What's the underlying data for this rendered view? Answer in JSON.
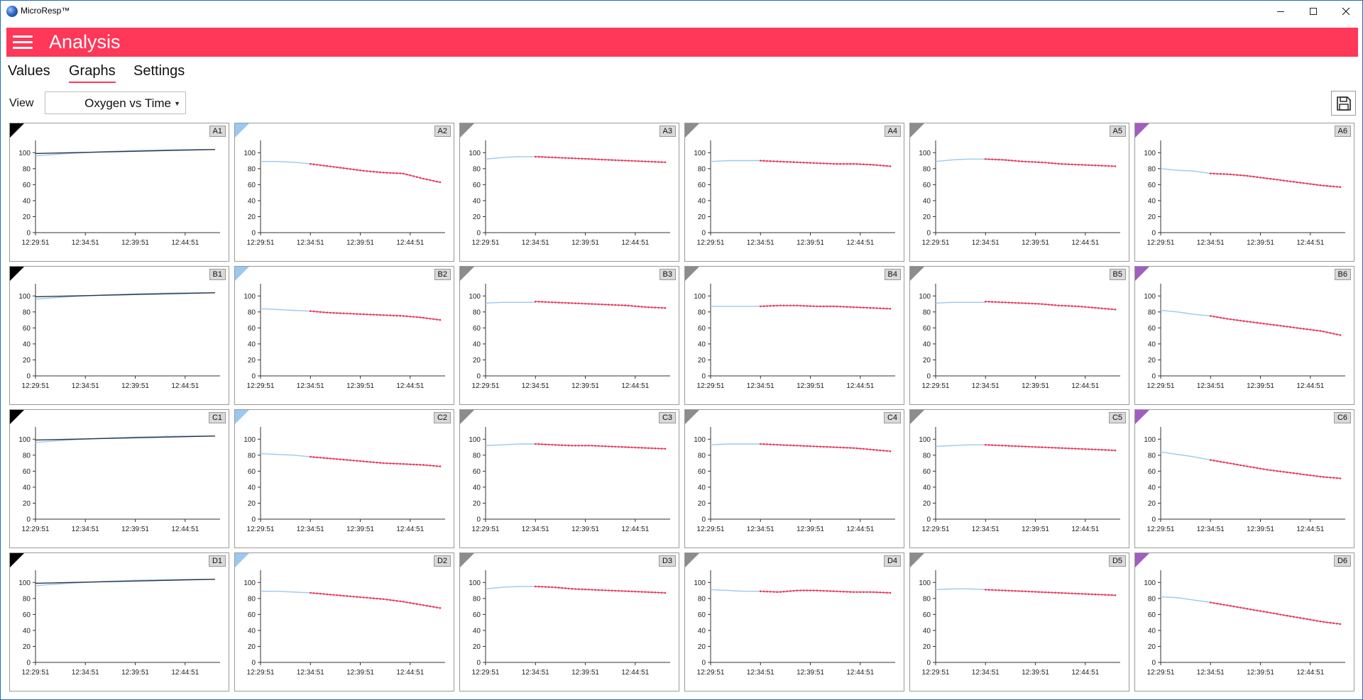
{
  "window": {
    "title": "MicroResp™"
  },
  "header": {
    "title": "Analysis"
  },
  "tabs": [
    {
      "label": "Values",
      "active": false
    },
    {
      "label": "Graphs",
      "active": true
    },
    {
      "label": "Settings",
      "active": false
    }
  ],
  "view": {
    "label": "View",
    "selected": "Oxygen vs Time"
  },
  "colors": {
    "accent": "#ff3758",
    "group_colors": {
      "black": "#000000",
      "blue": "#9cc8f0",
      "gray": "#8c8c8c",
      "purple": "#a05fc0"
    },
    "series_early": "#9cc8f0",
    "series_late": "#e8385a",
    "control_line": "#2b3444"
  },
  "axis": {
    "y_ticks": [
      "0",
      "20",
      "40",
      "60",
      "80",
      "100"
    ],
    "x_ticks": [
      "12:29:51",
      "12:34:51",
      "12:39:51",
      "12:44:51"
    ],
    "ylim": [
      0,
      110
    ],
    "xlim_minutes": [
      0,
      18.5
    ]
  },
  "chart_data": [
    {
      "type": "line",
      "well": "A1",
      "group": "black",
      "control": true,
      "values_start": 96,
      "values_mid": 101,
      "values_end": 104
    },
    {
      "type": "line",
      "well": "A2",
      "group": "blue",
      "early": [
        89,
        89,
        88,
        86
      ],
      "late": [
        86,
        83,
        80,
        77,
        75,
        74,
        68,
        63
      ]
    },
    {
      "type": "line",
      "well": "A3",
      "group": "gray",
      "early": [
        92,
        94,
        95,
        95
      ],
      "late": [
        95,
        94,
        93,
        92,
        91,
        90,
        89,
        88
      ]
    },
    {
      "type": "line",
      "well": "A4",
      "group": "gray",
      "early": [
        89,
        90,
        90,
        90
      ],
      "late": [
        90,
        89,
        88,
        87,
        86,
        86,
        85,
        83
      ]
    },
    {
      "type": "line",
      "well": "A5",
      "group": "gray",
      "early": [
        89,
        91,
        92,
        92
      ],
      "late": [
        92,
        91,
        89,
        88,
        86,
        85,
        84,
        83
      ]
    },
    {
      "type": "line",
      "well": "A6",
      "group": "purple",
      "early": [
        80,
        78,
        77,
        74
      ],
      "late": [
        74,
        73,
        71,
        68,
        65,
        62,
        59,
        57
      ]
    },
    {
      "type": "line",
      "well": "B1",
      "group": "black",
      "control": true,
      "values_start": 96,
      "values_mid": 101,
      "values_end": 104
    },
    {
      "type": "line",
      "well": "B2",
      "group": "blue",
      "early": [
        84,
        83,
        82,
        81
      ],
      "late": [
        81,
        79,
        78,
        77,
        76,
        75,
        73,
        70
      ]
    },
    {
      "type": "line",
      "well": "B3",
      "group": "gray",
      "early": [
        91,
        92,
        92,
        92
      ],
      "late": [
        93,
        92,
        91,
        90,
        89,
        88,
        86,
        85
      ]
    },
    {
      "type": "line",
      "well": "B4",
      "group": "gray",
      "early": [
        87,
        87,
        87,
        87
      ],
      "late": [
        87,
        88,
        88,
        87,
        87,
        86,
        85,
        84
      ]
    },
    {
      "type": "line",
      "well": "B5",
      "group": "gray",
      "early": [
        91,
        92,
        92,
        92
      ],
      "late": [
        93,
        92,
        91,
        90,
        88,
        87,
        85,
        83
      ]
    },
    {
      "type": "line",
      "well": "B6",
      "group": "purple",
      "early": [
        82,
        80,
        77,
        75
      ],
      "late": [
        75,
        71,
        68,
        65,
        62,
        59,
        56,
        51
      ]
    },
    {
      "type": "line",
      "well": "C1",
      "group": "black",
      "control": true,
      "values_start": 96,
      "values_mid": 101,
      "values_end": 104
    },
    {
      "type": "line",
      "well": "C2",
      "group": "blue",
      "early": [
        82,
        81,
        80,
        78
      ],
      "late": [
        78,
        76,
        74,
        72,
        70,
        69,
        68,
        66
      ]
    },
    {
      "type": "line",
      "well": "C3",
      "group": "gray",
      "early": [
        92,
        93,
        94,
        94
      ],
      "late": [
        94,
        93,
        92,
        92,
        91,
        90,
        89,
        88
      ]
    },
    {
      "type": "line",
      "well": "C4",
      "group": "gray",
      "early": [
        93,
        94,
        94,
        94
      ],
      "late": [
        94,
        93,
        92,
        91,
        90,
        89,
        87,
        85
      ]
    },
    {
      "type": "line",
      "well": "C5",
      "group": "gray",
      "early": [
        91,
        92,
        93,
        93
      ],
      "late": [
        93,
        92,
        91,
        90,
        89,
        88,
        87,
        86
      ]
    },
    {
      "type": "line",
      "well": "C6",
      "group": "purple",
      "early": [
        84,
        81,
        78,
        74
      ],
      "late": [
        74,
        70,
        66,
        62,
        59,
        56,
        53,
        51
      ]
    },
    {
      "type": "line",
      "well": "D1",
      "group": "black",
      "control": true,
      "values_start": 96,
      "values_mid": 101,
      "values_end": 104
    },
    {
      "type": "line",
      "well": "D2",
      "group": "blue",
      "early": [
        89,
        89,
        88,
        87
      ],
      "late": [
        87,
        85,
        83,
        81,
        79,
        76,
        72,
        68
      ]
    },
    {
      "type": "line",
      "well": "D3",
      "group": "gray",
      "early": [
        92,
        94,
        95,
        95
      ],
      "late": [
        95,
        94,
        92,
        91,
        90,
        89,
        88,
        87
      ]
    },
    {
      "type": "line",
      "well": "D4",
      "group": "gray",
      "early": [
        91,
        90,
        89,
        89
      ],
      "late": [
        89,
        88,
        90,
        90,
        89,
        88,
        88,
        87
      ]
    },
    {
      "type": "line",
      "well": "D5",
      "group": "gray",
      "early": [
        91,
        92,
        92,
        91
      ],
      "late": [
        91,
        90,
        89,
        88,
        87,
        86,
        85,
        84
      ]
    },
    {
      "type": "line",
      "well": "D6",
      "group": "purple",
      "early": [
        82,
        81,
        78,
        75
      ],
      "late": [
        75,
        71,
        67,
        63,
        59,
        55,
        51,
        48
      ]
    }
  ]
}
